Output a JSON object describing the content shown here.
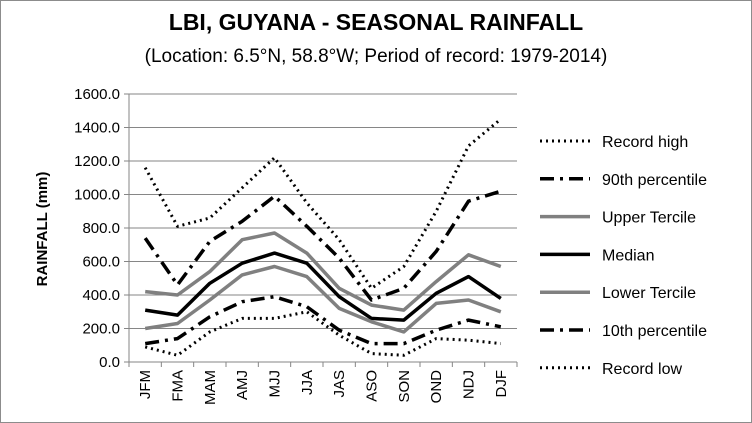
{
  "chart_data": {
    "type": "line",
    "title": "LBI, GUYANA - SEASONAL RAINFALL",
    "subtitle": "(Location: 6.5°N, 58.8°W; Period of record: 1979-2014)",
    "xlabel": "",
    "ylabel": "RAINFALL (mm)",
    "ylim": [
      0,
      1600
    ],
    "yticks": [
      0,
      200,
      400,
      600,
      800,
      1000,
      1200,
      1400,
      1600
    ],
    "ytick_labels": [
      "0.0",
      "200.0",
      "400.0",
      "600.0",
      "800.0",
      "1000.0",
      "1200.0",
      "1400.0",
      "1600.0"
    ],
    "grid": "horizontal",
    "legend_position": "right",
    "categories": [
      "JFM",
      "FMA",
      "MAM",
      "AMJ",
      "MJJ",
      "JJA",
      "JAS",
      "ASO",
      "SON",
      "OND",
      "NDJ",
      "DJF"
    ],
    "series": [
      {
        "name": "Record high",
        "color": "#000000",
        "style": "dotted",
        "values": [
          1160,
          810,
          860,
          1040,
          1220,
          950,
          730,
          440,
          570,
          900,
          1290,
          1450
        ]
      },
      {
        "name": "90th percentile",
        "color": "#000000",
        "style": "dash-dot",
        "values": [
          740,
          460,
          720,
          840,
          990,
          810,
          620,
          370,
          440,
          660,
          960,
          1020
        ]
      },
      {
        "name": "Upper Tercile",
        "color": "#808080",
        "style": "solid",
        "values": [
          420,
          400,
          540,
          730,
          770,
          650,
          440,
          340,
          310,
          480,
          640,
          570
        ]
      },
      {
        "name": "Median",
        "color": "#000000",
        "style": "solid",
        "values": [
          310,
          280,
          470,
          590,
          650,
          590,
          390,
          260,
          250,
          410,
          510,
          380
        ]
      },
      {
        "name": "Lower Tercile",
        "color": "#808080",
        "style": "solid",
        "values": [
          200,
          230,
          370,
          520,
          570,
          510,
          320,
          240,
          180,
          350,
          370,
          300
        ]
      },
      {
        "name": "10th percentile",
        "color": "#000000",
        "style": "dash-dot",
        "values": [
          110,
          140,
          270,
          360,
          390,
          330,
          190,
          110,
          110,
          190,
          250,
          210
        ]
      },
      {
        "name": "Record low",
        "color": "#000000",
        "style": "dotted",
        "values": [
          90,
          40,
          180,
          260,
          260,
          300,
          160,
          50,
          40,
          140,
          130,
          110
        ]
      }
    ]
  }
}
